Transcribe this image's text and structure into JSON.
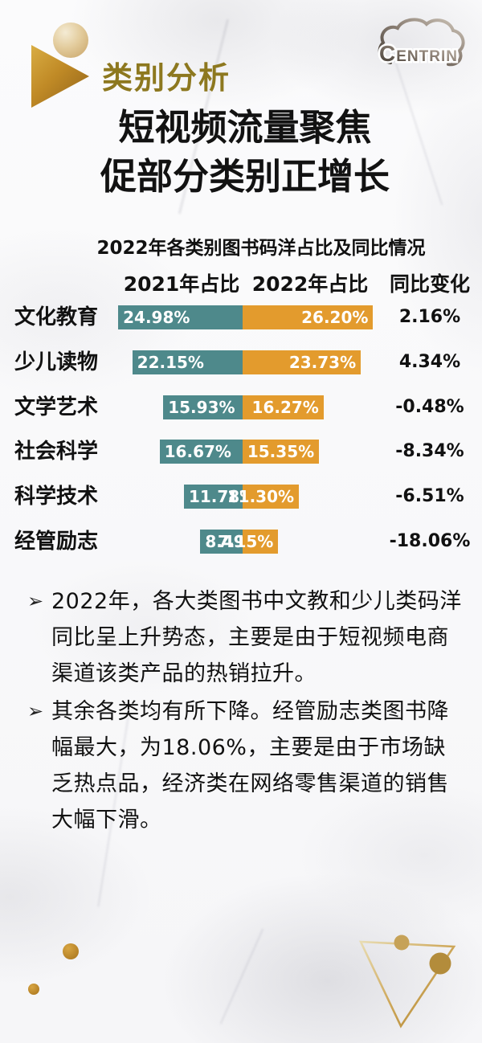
{
  "header": {
    "section_label": "类别分析",
    "title_line1": "短视频流量聚焦",
    "title_line2": "促部分类别正增长",
    "logo": {
      "first_letter": "C",
      "rest": "ENTRIN",
      "full_text": "CENTRIN"
    }
  },
  "chart_data": {
    "type": "bar",
    "title": "2022年各类别图书码洋占比及同比情况",
    "column_headers": [
      "2021年占比",
      "2022年占比",
      "同比变化"
    ],
    "categories": [
      "文化教育",
      "少儿读物",
      "文学艺术",
      "社会科学",
      "科学技术",
      "经管励志"
    ],
    "series": [
      {
        "name": "2021年占比",
        "values": [
          24.98,
          22.15,
          15.93,
          16.67,
          11.78,
          8.49
        ]
      },
      {
        "name": "2022年占比",
        "values": [
          26.2,
          23.73,
          16.27,
          15.35,
          11.3,
          7.15
        ]
      }
    ],
    "value_labels_2021": [
      "24.98%",
      "22.15%",
      "15.93%",
      "16.67%",
      "11.78%",
      "8.49%"
    ],
    "value_labels_2022": [
      "26.20%",
      "23.73%",
      "16.27%",
      "15.35%",
      "11.30%",
      "7.15%"
    ],
    "change_values": [
      "2.16%",
      "4.34%",
      "-0.48%",
      "-8.34%",
      "-6.51%",
      "-18.06%"
    ],
    "layout": {
      "orientation": "horizontal-diverging",
      "legend": "column-headers",
      "grid": false
    },
    "colors": {
      "series_2021": "#4e898b",
      "series_2022": "#e39b2d",
      "value_label": "#ffffff"
    }
  },
  "bullet_marker": "➢",
  "bullets": [
    "2022年，各大类图书中文教和少儿类码洋同比呈上升势态，主要是由于短视频电商渠道该类产品的热销拉升。",
    "其余各类均有所下降。经管励志类图书降幅最大，为18.06%，主要是由于市场缺乏热点品，经济类在网络零售渠道的销售大幅下滑。"
  ],
  "accent_colors": {
    "gold_text": "#8d781f",
    "gold_shape": "#c08a26",
    "title_text": "#121212"
  }
}
